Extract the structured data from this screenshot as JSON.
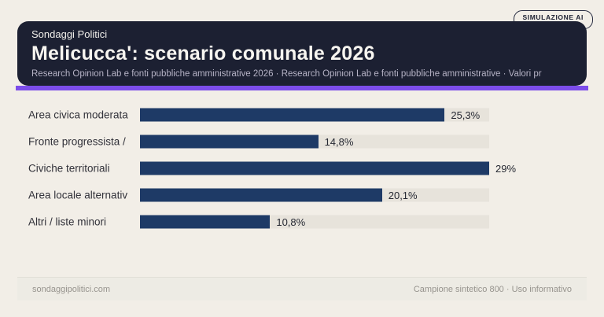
{
  "badge": {
    "label": "SIMULAZIONE AI"
  },
  "header": {
    "kicker": "Sondaggi Politici",
    "title": "Melicucca': scenario comunale 2026",
    "subtitle": "Research Opinion Lab e fonti pubbliche amministrative 2026 · Research Opinion Lab e fonti pubbliche amministrative · Valori pr"
  },
  "chart_data": {
    "type": "bar",
    "orientation": "horizontal",
    "title": "Melicucca': scenario comunale 2026",
    "categories": [
      "Area civica moderata",
      "Fronte progressista /",
      "Civiche territoriali",
      "Area locale alternativ",
      "Altri / liste minori"
    ],
    "values": [
      25.3,
      14.8,
      29,
      20.1,
      10.8
    ],
    "value_labels": [
      "25,3%",
      "14,8%",
      "29%",
      "20,1%",
      "10,8%"
    ],
    "xlim": [
      0,
      29
    ],
    "grid": false,
    "legend": false,
    "bar_color": "#1e3a66",
    "track_color": "#e7e3db"
  },
  "footer": {
    "left": "sondaggipolitici.com",
    "right": "Campione sintetico 800 · Uso informativo"
  },
  "colors": {
    "page_background": "#f2eee7",
    "header_background": "#1c2032",
    "accent": "#7c4dea",
    "bar": "#1e3a66",
    "bar_track": "#e7e3db",
    "title_text": "#f7f5f0",
    "subtitle_text": "#b6b3c6",
    "footer_text": "#97948e"
  }
}
